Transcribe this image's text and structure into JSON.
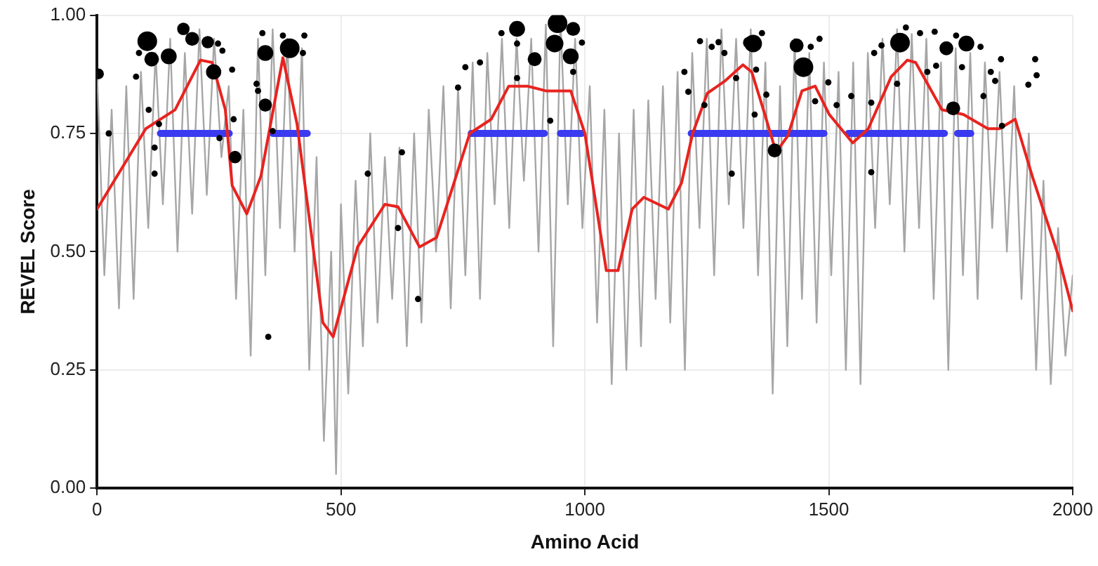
{
  "chart_data": {
    "type": "line",
    "xlabel": "Amino Acid",
    "ylabel": "REVEL Score",
    "xlim": [
      0,
      2000
    ],
    "xticks": [
      0,
      500,
      1000,
      1500,
      2000
    ],
    "ylim": [
      0,
      1
    ],
    "yticks": [
      {
        "value": 0,
        "label": "0.00"
      },
      {
        "value": 0.25,
        "label": "0.25"
      },
      {
        "value": 0.5,
        "label": "0.50"
      },
      {
        "value": 0.75,
        "label": "0.75"
      },
      {
        "value": 1,
        "label": "1.00"
      }
    ],
    "grid": true,
    "legend": false,
    "line_style": "solid",
    "series": [
      {
        "color": "#a6a6a6",
        "x": [
          0,
          15,
          30,
          45,
          60,
          75,
          90,
          105,
          120,
          135,
          150,
          165,
          180,
          195,
          210,
          225,
          240,
          255,
          270,
          285,
          300,
          315,
          330,
          345,
          360,
          375,
          390,
          405,
          420,
          435,
          450,
          465,
          480,
          490,
          500,
          515,
          530,
          545,
          560,
          575,
          590,
          605,
          620,
          635,
          650,
          665,
          680,
          695,
          710,
          725,
          740,
          755,
          770,
          785,
          800,
          815,
          830,
          845,
          860,
          875,
          890,
          905,
          920,
          935,
          950,
          965,
          980,
          995,
          1010,
          1025,
          1040,
          1055,
          1070,
          1085,
          1100,
          1115,
          1130,
          1145,
          1160,
          1175,
          1190,
          1205,
          1220,
          1235,
          1250,
          1265,
          1280,
          1295,
          1310,
          1325,
          1340,
          1355,
          1370,
          1385,
          1400,
          1415,
          1430,
          1445,
          1460,
          1475,
          1490,
          1505,
          1520,
          1535,
          1550,
          1565,
          1580,
          1595,
          1610,
          1625,
          1640,
          1655,
          1670,
          1685,
          1700,
          1715,
          1730,
          1745,
          1760,
          1775,
          1790,
          1805,
          1820,
          1835,
          1850,
          1865,
          1880,
          1895,
          1910,
          1925,
          1940,
          1955,
          1970,
          1985,
          2000
        ],
        "values": [
          0.88,
          0.45,
          0.8,
          0.38,
          0.85,
          0.4,
          0.88,
          0.55,
          0.92,
          0.6,
          0.95,
          0.5,
          0.92,
          0.58,
          0.97,
          0.62,
          0.95,
          0.7,
          0.85,
          0.4,
          0.8,
          0.28,
          0.95,
          0.45,
          0.97,
          0.55,
          0.95,
          0.5,
          0.93,
          0.25,
          0.7,
          0.1,
          0.5,
          0.03,
          0.6,
          0.2,
          0.65,
          0.3,
          0.75,
          0.35,
          0.7,
          0.4,
          0.72,
          0.3,
          0.75,
          0.35,
          0.8,
          0.5,
          0.85,
          0.38,
          0.85,
          0.45,
          0.9,
          0.4,
          0.92,
          0.6,
          0.95,
          0.55,
          0.95,
          0.65,
          0.95,
          0.5,
          0.98,
          0.3,
          0.99,
          0.6,
          0.95,
          0.55,
          0.85,
          0.35,
          0.8,
          0.22,
          0.75,
          0.25,
          0.8,
          0.3,
          0.82,
          0.4,
          0.85,
          0.35,
          0.88,
          0.25,
          0.92,
          0.55,
          0.95,
          0.45,
          0.97,
          0.6,
          0.95,
          0.55,
          0.97,
          0.45,
          0.9,
          0.2,
          0.85,
          0.3,
          0.95,
          0.4,
          0.92,
          0.35,
          0.9,
          0.45,
          0.88,
          0.25,
          0.9,
          0.22,
          0.92,
          0.55,
          0.95,
          0.6,
          0.97,
          0.5,
          0.96,
          0.55,
          0.95,
          0.4,
          0.9,
          0.25,
          0.93,
          0.45,
          0.92,
          0.4,
          0.9,
          0.55,
          0.88,
          0.5,
          0.85,
          0.4,
          0.75,
          0.25,
          0.65,
          0.22,
          0.55,
          0.28,
          0.45
        ]
      },
      {
        "color": "#3a3af0",
        "x": [
          130,
          271,
          300,
          360,
          431,
          600,
          767,
          917,
          930,
          950,
          994,
          1100,
          1218,
          1490,
          1515,
          1540,
          1737,
          1750,
          1764,
          1791
        ],
        "values": [
          0.75,
          0.75,
          null,
          0.75,
          0.75,
          null,
          0.75,
          0.75,
          null,
          0.75,
          0.75,
          null,
          0.75,
          0.75,
          null,
          0.75,
          0.75,
          null,
          0.75,
          0.75
        ]
      },
      {
        "color": "#e8231f",
        "x": [
          0,
          100,
          160,
          212,
          236,
          263,
          277,
          307,
          336,
          381,
          410,
          463,
          484,
          534,
          590,
          617,
          661,
          696,
          764,
          808,
          844,
          882,
          920,
          971,
          1000,
          1044,
          1068,
          1097,
          1121,
          1171,
          1198,
          1221,
          1251,
          1286,
          1324,
          1342,
          1369,
          1392,
          1416,
          1445,
          1472,
          1501,
          1549,
          1581,
          1628,
          1661,
          1678,
          1732,
          1776,
          1826,
          1850,
          1882,
          1917,
          1971,
          2000
        ],
        "values": [
          0.59,
          0.76,
          0.8,
          0.905,
          0.9,
          0.8,
          0.64,
          0.58,
          0.66,
          0.91,
          0.77,
          0.35,
          0.32,
          0.51,
          0.6,
          0.595,
          0.51,
          0.53,
          0.75,
          0.78,
          0.85,
          0.85,
          0.84,
          0.84,
          0.75,
          0.46,
          0.46,
          0.59,
          0.615,
          0.59,
          0.645,
          0.75,
          0.835,
          0.86,
          0.895,
          0.88,
          0.79,
          0.71,
          0.745,
          0.84,
          0.85,
          0.79,
          0.73,
          0.76,
          0.87,
          0.905,
          0.9,
          0.8,
          0.79,
          0.76,
          0.76,
          0.78,
          0.66,
          0.49,
          0.375
        ]
      },
      {
        "type": "bubble",
        "marker": "circle",
        "color": "#000000",
        "x": [
          3,
          103,
          112,
          147,
          177,
          195,
          227,
          239,
          283,
          345,
          345,
          395,
          24,
          80,
          86,
          106,
          118,
          118,
          127,
          248,
          257,
          277,
          280,
          251,
          327,
          330,
          339,
          351,
          360,
          381,
          425,
          422,
          555,
          617,
          625,
          658,
          861,
          897,
          944,
          938,
          976,
          971,
          829,
          861,
          740,
          755,
          785,
          861,
          929,
          976,
          994,
          1204,
          1212,
          1245,
          1236,
          1260,
          1274,
          1286,
          1301,
          1310,
          1336,
          1345,
          1389,
          1434,
          1448,
          1646,
          1741,
          1782,
          1755,
          1363,
          1351,
          1372,
          1348,
          1463,
          1481,
          1472,
          1499,
          1516,
          1546,
          1587,
          1593,
          1608,
          1587,
          1640,
          1658,
          1687,
          1702,
          1717,
          1720,
          1761,
          1773,
          1811,
          1817,
          1832,
          1841,
          1853,
          1855,
          1909,
          1923,
          1926
        ],
        "values": [
          0.876,
          0.945,
          0.907,
          0.913,
          0.971,
          0.95,
          0.943,
          0.88,
          0.7,
          0.92,
          0.81,
          0.93,
          0.75,
          0.87,
          0.92,
          0.8,
          0.72,
          0.665,
          0.77,
          0.94,
          0.925,
          0.885,
          0.78,
          0.74,
          0.855,
          0.84,
          0.962,
          0.32,
          0.755,
          0.957,
          0.957,
          0.92,
          0.665,
          0.55,
          0.71,
          0.4,
          0.971,
          0.907,
          0.983,
          0.94,
          0.971,
          0.913,
          0.962,
          0.94,
          0.847,
          0.89,
          0.9,
          0.867,
          0.777,
          0.88,
          0.942,
          0.88,
          0.838,
          0.81,
          0.945,
          0.933,
          0.943,
          0.92,
          0.665,
          0.867,
          0.942,
          0.94,
          0.714,
          0.936,
          0.89,
          0.942,
          0.93,
          0.94,
          0.803,
          0.962,
          0.885,
          0.832,
          0.79,
          0.933,
          0.95,
          0.818,
          0.858,
          0.81,
          0.829,
          0.668,
          0.92,
          0.936,
          0.815,
          0.855,
          0.974,
          0.962,
          0.88,
          0.965,
          0.893,
          0.957,
          0.89,
          0.933,
          0.829,
          0.88,
          0.861,
          0.907,
          0.766,
          0.853,
          0.907,
          0.873
        ],
        "sizes": [
          0.3,
          1,
          0.55,
          0.65,
          0.4,
          0.5,
          0.4,
          0.6,
          0.4,
          0.65,
          0.45,
          1,
          0.1,
          0.1,
          0.1,
          0.1,
          0.1,
          0.1,
          0.1,
          0.1,
          0.1,
          0.1,
          0.1,
          0.1,
          0.1,
          0.1,
          0.1,
          0.1,
          0.1,
          0.1,
          0.1,
          0.1,
          0.1,
          0.1,
          0.1,
          0.1,
          0.65,
          0.5,
          1,
          0.8,
          0.5,
          0.65,
          0.1,
          0.1,
          0.1,
          0.1,
          0.1,
          0.1,
          0.1,
          0.1,
          0.1,
          0.1,
          0.1,
          0.1,
          0.1,
          0.1,
          0.1,
          0.1,
          0.1,
          0.1,
          0.35,
          0.8,
          0.5,
          0.5,
          1,
          1,
          0.5,
          0.65,
          0.5,
          0.1,
          0.1,
          0.1,
          0.1,
          0.1,
          0.1,
          0.1,
          0.1,
          0.1,
          0.1,
          0.1,
          0.1,
          0.1,
          0.1,
          0.1,
          0.1,
          0.1,
          0.1,
          0.1,
          0.1,
          0.1,
          0.1,
          0.1,
          0.1,
          0.1,
          0.1,
          0.1,
          0.1,
          0.1,
          0.1,
          0.1
        ]
      }
    ]
  }
}
